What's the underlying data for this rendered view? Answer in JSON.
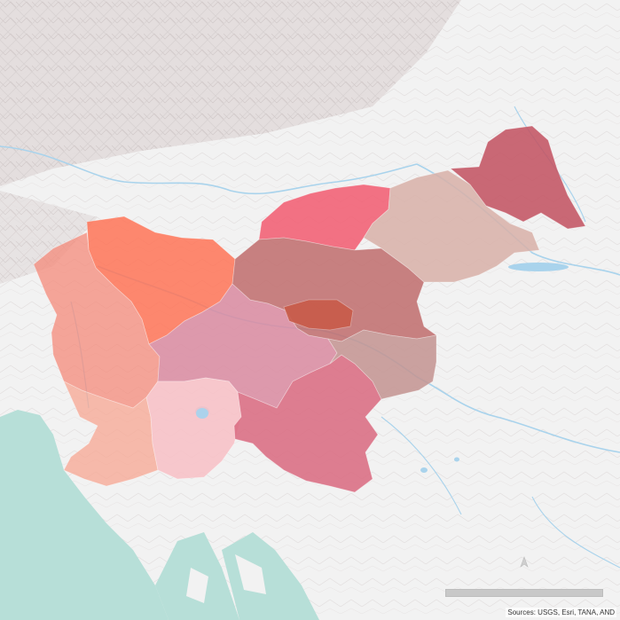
{
  "map": {
    "attribution": "Sources: USGS, Esri, TANA, AND",
    "colors": {
      "land": "#f2f2f2",
      "relief": "#c9c2c2",
      "sea": "#b7dfd8",
      "river": "#a9d3ec",
      "lake": "#a9d3ec"
    },
    "regions": [
      {
        "name": "region-gorenjska",
        "color": "#ff6f50",
        "opacity": 0.82
      },
      {
        "name": "region-goriska",
        "color": "#f4897a",
        "opacity": 0.75
      },
      {
        "name": "region-osrednjeslovenska",
        "color": "#d98aa0",
        "opacity": 0.85
      },
      {
        "name": "region-obalno-kraska",
        "color": "#f7a592",
        "opacity": 0.75
      },
      {
        "name": "region-primorsko-notranjska",
        "color": "#f8bfc6",
        "opacity": 0.85
      },
      {
        "name": "region-jugovzhodna-slovenija",
        "color": "#d9687f",
        "opacity": 0.85
      },
      {
        "name": "region-koroska",
        "color": "#f25a70",
        "opacity": 0.85
      },
      {
        "name": "region-savinjska",
        "color": "#c06c6c",
        "opacity": 0.85
      },
      {
        "name": "region-zasavska",
        "color": "#c85a48",
        "opacity": 0.9
      },
      {
        "name": "region-posavska",
        "color": "#c39390",
        "opacity": 0.85
      },
      {
        "name": "region-podravska",
        "color": "#d8b0a8",
        "opacity": 0.85
      },
      {
        "name": "region-pomurska",
        "color": "#c2505f",
        "opacity": 0.85
      }
    ]
  }
}
